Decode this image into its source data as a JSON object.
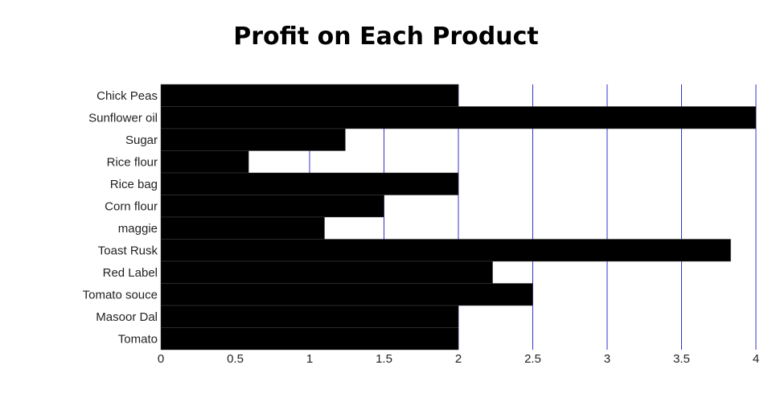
{
  "chart_data": {
    "type": "bar",
    "orientation": "horizontal",
    "title": "Profit on Each Product",
    "xlabel": "",
    "ylabel": "",
    "categories": [
      "Chick Peas",
      "Sunflower oil",
      "Sugar",
      "Rice flour",
      "Rice bag",
      "Corn flour",
      "maggie",
      "Toast Rusk",
      "Red Label",
      "Tomato souce",
      "Masoor Dal",
      "Tomato"
    ],
    "values": [
      2,
      4,
      1.24,
      0.59,
      2,
      1.5,
      1.1,
      3.83,
      2.23,
      2.5,
      2,
      2
    ],
    "xlim": [
      0,
      4
    ],
    "xticks": [
      "0",
      "0.5",
      "1",
      "1.5",
      "2",
      "2.5",
      "3",
      "3.5",
      "4"
    ],
    "grid": "vertical",
    "colors": {
      "bar": "#000000",
      "grid": "#3333cc"
    }
  }
}
